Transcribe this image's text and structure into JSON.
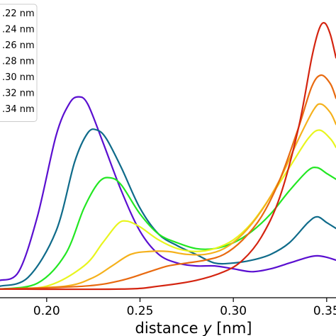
{
  "chart_data": {
    "type": "line",
    "xlabel_prefix": "distance ",
    "xlabel_var": "y",
    "xlabel_suffix": " [nm]",
    "xlim": [
      0.175,
      0.355
    ],
    "ylim": [
      -0.03,
      1.0
    ],
    "x_ticks": [
      {
        "value": 0.2,
        "label": "0.20"
      },
      {
        "value": 0.25,
        "label": "0.25"
      },
      {
        "value": 0.3,
        "label": "0.30"
      },
      {
        "value": 0.35,
        "label": "0.35"
      }
    ],
    "legend_position": "top-left",
    "series": [
      {
        "name": ".22 nm",
        "color": "#5a0fd0",
        "points": [
          [
            0.175,
            0.03
          ],
          [
            0.185,
            0.06
          ],
          [
            0.195,
            0.25
          ],
          [
            0.205,
            0.53
          ],
          [
            0.212,
            0.64
          ],
          [
            0.217,
            0.665
          ],
          [
            0.222,
            0.64
          ],
          [
            0.23,
            0.51
          ],
          [
            0.24,
            0.34
          ],
          [
            0.25,
            0.2
          ],
          [
            0.26,
            0.12
          ],
          [
            0.27,
            0.09
          ],
          [
            0.28,
            0.08
          ],
          [
            0.29,
            0.08
          ],
          [
            0.3,
            0.07
          ],
          [
            0.31,
            0.06
          ],
          [
            0.32,
            0.07
          ],
          [
            0.33,
            0.09
          ],
          [
            0.34,
            0.11
          ],
          [
            0.345,
            0.115
          ],
          [
            0.35,
            0.11
          ],
          [
            0.355,
            0.1
          ]
        ]
      },
      {
        "name": ".24 nm",
        "color": "#0f6b8a",
        "points": [
          [
            0.175,
            0.01
          ],
          [
            0.19,
            0.04
          ],
          [
            0.205,
            0.2
          ],
          [
            0.215,
            0.44
          ],
          [
            0.222,
            0.54
          ],
          [
            0.227,
            0.55
          ],
          [
            0.232,
            0.52
          ],
          [
            0.24,
            0.42
          ],
          [
            0.25,
            0.28
          ],
          [
            0.26,
            0.19
          ],
          [
            0.27,
            0.15
          ],
          [
            0.28,
            0.12
          ],
          [
            0.29,
            0.09
          ],
          [
            0.3,
            0.09
          ],
          [
            0.31,
            0.1
          ],
          [
            0.32,
            0.12
          ],
          [
            0.33,
            0.16
          ],
          [
            0.34,
            0.23
          ],
          [
            0.345,
            0.25
          ],
          [
            0.35,
            0.23
          ],
          [
            0.355,
            0.21
          ]
        ]
      },
      {
        "name": ".26 nm",
        "color": "#22e722",
        "points": [
          [
            0.175,
            0.0
          ],
          [
            0.195,
            0.02
          ],
          [
            0.21,
            0.12
          ],
          [
            0.22,
            0.28
          ],
          [
            0.228,
            0.37
          ],
          [
            0.234,
            0.385
          ],
          [
            0.24,
            0.36
          ],
          [
            0.25,
            0.26
          ],
          [
            0.26,
            0.19
          ],
          [
            0.27,
            0.16
          ],
          [
            0.28,
            0.14
          ],
          [
            0.29,
            0.14
          ],
          [
            0.3,
            0.16
          ],
          [
            0.31,
            0.2
          ],
          [
            0.32,
            0.26
          ],
          [
            0.33,
            0.34
          ],
          [
            0.34,
            0.41
          ],
          [
            0.345,
            0.42
          ],
          [
            0.35,
            0.4
          ],
          [
            0.355,
            0.38
          ]
        ]
      },
      {
        "name": ".28 nm",
        "color": "#e8f51e",
        "points": [
          [
            0.175,
            0.0
          ],
          [
            0.2,
            0.01
          ],
          [
            0.22,
            0.08
          ],
          [
            0.23,
            0.16
          ],
          [
            0.238,
            0.225
          ],
          [
            0.243,
            0.235
          ],
          [
            0.25,
            0.215
          ],
          [
            0.26,
            0.17
          ],
          [
            0.27,
            0.14
          ],
          [
            0.28,
            0.13
          ],
          [
            0.29,
            0.14
          ],
          [
            0.3,
            0.17
          ],
          [
            0.31,
            0.23
          ],
          [
            0.32,
            0.32
          ],
          [
            0.33,
            0.42
          ],
          [
            0.34,
            0.52
          ],
          [
            0.346,
            0.55
          ],
          [
            0.352,
            0.52
          ],
          [
            0.355,
            0.49
          ]
        ]
      },
      {
        "name": ".30 nm",
        "color": "#f5b11c",
        "points": [
          [
            0.175,
            0.0
          ],
          [
            0.21,
            0.01
          ],
          [
            0.225,
            0.04
          ],
          [
            0.235,
            0.08
          ],
          [
            0.245,
            0.12
          ],
          [
            0.255,
            0.13
          ],
          [
            0.265,
            0.13
          ],
          [
            0.275,
            0.12
          ],
          [
            0.285,
            0.12
          ],
          [
            0.295,
            0.14
          ],
          [
            0.305,
            0.19
          ],
          [
            0.315,
            0.27
          ],
          [
            0.325,
            0.38
          ],
          [
            0.335,
            0.52
          ],
          [
            0.343,
            0.62
          ],
          [
            0.347,
            0.64
          ],
          [
            0.352,
            0.61
          ],
          [
            0.355,
            0.57
          ]
        ]
      },
      {
        "name": ".32 nm",
        "color": "#e86a10",
        "points": [
          [
            0.175,
            0.0
          ],
          [
            0.22,
            0.01
          ],
          [
            0.24,
            0.03
          ],
          [
            0.255,
            0.06
          ],
          [
            0.265,
            0.08
          ],
          [
            0.275,
            0.09
          ],
          [
            0.285,
            0.1
          ],
          [
            0.295,
            0.12
          ],
          [
            0.305,
            0.17
          ],
          [
            0.315,
            0.25
          ],
          [
            0.325,
            0.38
          ],
          [
            0.335,
            0.56
          ],
          [
            0.342,
            0.7
          ],
          [
            0.347,
            0.74
          ],
          [
            0.352,
            0.71
          ],
          [
            0.355,
            0.66
          ]
        ]
      },
      {
        "name": ".34 nm",
        "color": "#d42410",
        "points": [
          [
            0.175,
            0.0
          ],
          [
            0.24,
            0.0
          ],
          [
            0.26,
            0.01
          ],
          [
            0.28,
            0.03
          ],
          [
            0.295,
            0.06
          ],
          [
            0.305,
            0.1
          ],
          [
            0.315,
            0.18
          ],
          [
            0.325,
            0.32
          ],
          [
            0.335,
            0.56
          ],
          [
            0.342,
            0.8
          ],
          [
            0.346,
            0.9
          ],
          [
            0.349,
            0.92
          ],
          [
            0.352,
            0.88
          ],
          [
            0.355,
            0.8
          ]
        ]
      }
    ]
  }
}
